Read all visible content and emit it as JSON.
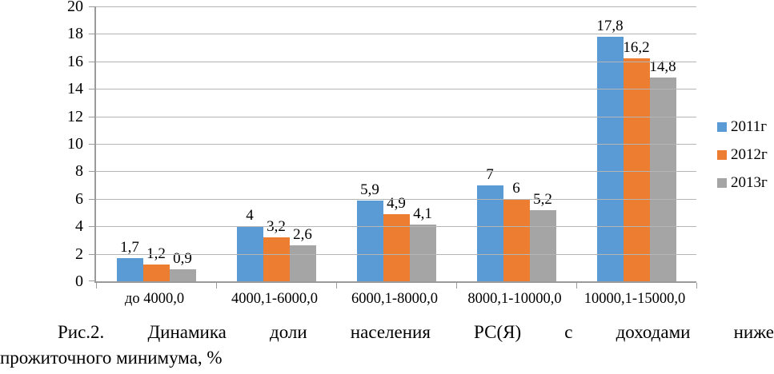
{
  "chart_data": {
    "type": "bar",
    "title": "",
    "xlabel": "",
    "ylabel": "",
    "categories": [
      "до 4000,0",
      "4000,1-6000,0",
      "6000,1-8000,0",
      "8000,1-10000,0",
      "10000,1-15000,0"
    ],
    "series": [
      {
        "name": "2011г",
        "color": "#5B9BD5",
        "values": [
          1.7,
          4,
          5.9,
          7,
          17.8
        ],
        "labels": [
          "1,7",
          "4",
          "5,9",
          "7",
          "17,8"
        ]
      },
      {
        "name": "2012г",
        "color": "#ED7D31",
        "values": [
          1.2,
          3.2,
          4.9,
          6,
          16.2
        ],
        "labels": [
          "1,2",
          "3,2",
          "4,9",
          "6",
          "16,2"
        ]
      },
      {
        "name": "2013г",
        "color": "#A5A5A5",
        "values": [
          0.9,
          2.6,
          4.1,
          5.2,
          14.8
        ],
        "labels": [
          "0,9",
          "2,6",
          "4,1",
          "5,2",
          "14,8"
        ]
      }
    ],
    "ylim": [
      0,
      20
    ],
    "ytick_step": 2,
    "ytick_labels": [
      "0",
      "2",
      "4",
      "6",
      "8",
      "10",
      "12",
      "14",
      "16",
      "18",
      "20"
    ],
    "grid": true,
    "legend_position": "right"
  },
  "caption": {
    "line1": "Рис.2. Динамика доли населения РС(Я) с доходами ниже",
    "line2": "прожиточного минимума, %"
  },
  "colors": {
    "axis": "#9a9a9a",
    "gridline": "#b5b5b5",
    "text": "#000000"
  }
}
